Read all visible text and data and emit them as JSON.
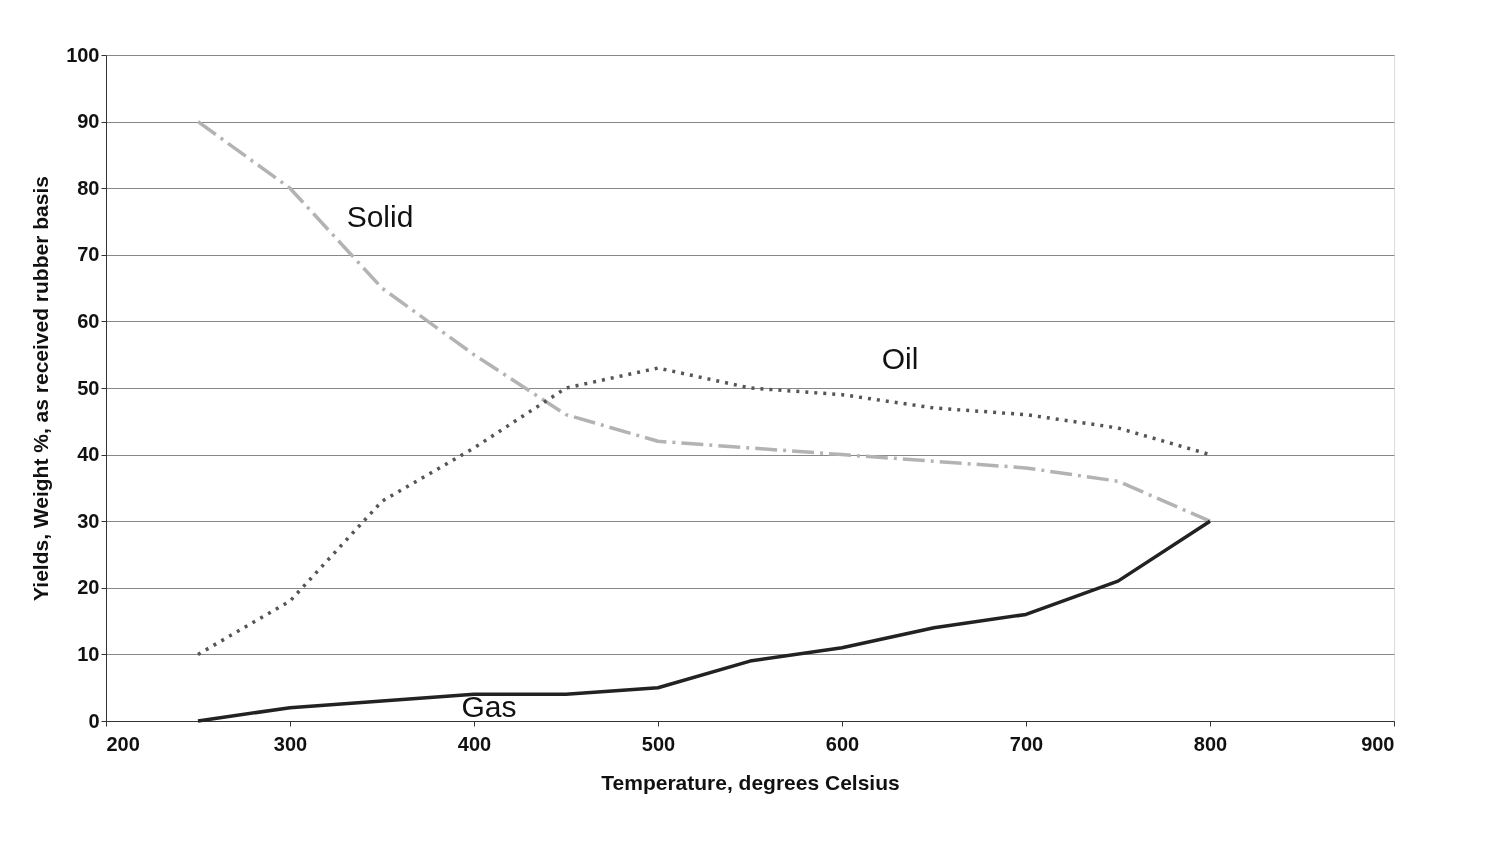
{
  "chart_data": {
    "type": "line",
    "xlabel": "Temperature, degrees Celsius",
    "ylabel": "Yields, Weight %, as received rubber basis",
    "x": [
      250,
      300,
      350,
      400,
      450,
      500,
      550,
      600,
      650,
      700,
      750,
      800
    ],
    "series": [
      {
        "name": "Solid",
        "color": "#b3b3b3",
        "line_style": "dashed",
        "values": [
          90,
          80,
          65,
          55,
          46,
          42,
          41,
          40,
          39,
          38,
          36,
          30
        ]
      },
      {
        "name": "Oil",
        "color": "#555555",
        "line_style": "dotted",
        "values": [
          10,
          18,
          33,
          41,
          50,
          53,
          50,
          49,
          47,
          46,
          44,
          40
        ]
      },
      {
        "name": "Gas",
        "color": "#222222",
        "line_style": "solid",
        "values": [
          0,
          2,
          3,
          4,
          4,
          5,
          9,
          11,
          14,
          16,
          21,
          30
        ]
      }
    ],
    "xlim": [
      200,
      900
    ],
    "xticks": [
      200,
      300,
      400,
      500,
      600,
      700,
      800,
      900
    ],
    "ylim": [
      0,
      100
    ],
    "yticks": [
      0,
      10,
      20,
      30,
      40,
      50,
      60,
      70,
      80,
      90,
      100
    ],
    "grid": "y",
    "marker": "none"
  }
}
